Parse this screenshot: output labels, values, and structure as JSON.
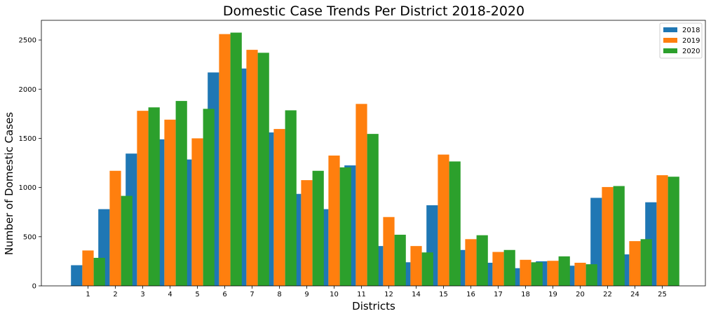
{
  "chart_data": {
    "type": "bar",
    "title": "Domestic Case Trends Per District 2018-2020",
    "xlabel": "Districts",
    "ylabel": "Number of Domestic Cases",
    "categories": [
      "1",
      "2",
      "3",
      "4",
      "5",
      "6",
      "7",
      "8",
      "9",
      "10",
      "11",
      "12",
      "14",
      "15",
      "16",
      "17",
      "18",
      "19",
      "20",
      "22",
      "24",
      "25"
    ],
    "series": [
      {
        "name": "2018",
        "color": "#1f77b4",
        "values": [
          210,
          780,
          1345,
          1490,
          1285,
          2170,
          2210,
          1560,
          935,
          780,
          1225,
          405,
          240,
          820,
          365,
          235,
          180,
          250,
          205,
          895,
          320,
          850
        ]
      },
      {
        "name": "2019",
        "color": "#ff7f0e",
        "values": [
          360,
          1170,
          1780,
          1690,
          1500,
          2560,
          2400,
          1595,
          1075,
          1325,
          1850,
          700,
          405,
          1335,
          475,
          345,
          265,
          255,
          235,
          1005,
          455,
          1125
        ]
      },
      {
        "name": "2020",
        "color": "#2ca02c",
        "values": [
          285,
          915,
          1815,
          1880,
          1800,
          2575,
          2370,
          1785,
          1170,
          1205,
          1545,
          520,
          340,
          1265,
          515,
          365,
          240,
          300,
          220,
          1015,
          475,
          1110
        ]
      }
    ],
    "ylim": [
      0,
      2700
    ],
    "yticks": [
      0,
      500,
      1000,
      1500,
      2000,
      2500
    ],
    "legend": "top-right",
    "grid": false
  }
}
